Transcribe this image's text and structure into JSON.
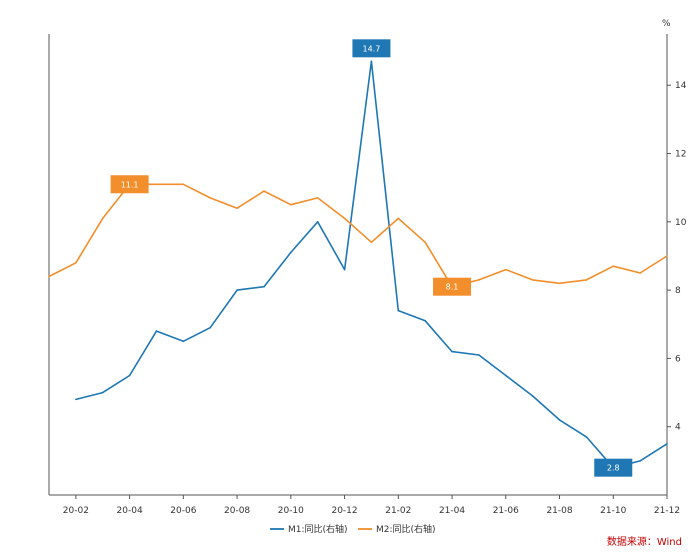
{
  "chart_data": {
    "type": "line",
    "x": [
      "20-01",
      "20-02",
      "20-03",
      "20-04",
      "20-05",
      "20-06",
      "20-07",
      "20-08",
      "20-09",
      "20-10",
      "20-11",
      "20-12",
      "21-01",
      "21-02",
      "21-03",
      "21-04",
      "21-05",
      "21-06",
      "21-07",
      "21-08",
      "21-09",
      "21-10",
      "21-11",
      "21-12"
    ],
    "x_ticks": [
      "20-02",
      "20-04",
      "20-06",
      "20-08",
      "20-10",
      "20-12",
      "21-02",
      "21-04",
      "21-06",
      "21-08",
      "21-10",
      "21-12"
    ],
    "y_unit": "%",
    "ylim": [
      2,
      15.5
    ],
    "y_ticks": [
      4,
      6,
      8,
      10,
      12,
      14
    ],
    "y_axis_side": "right",
    "grid": false,
    "legend_position": "bottom",
    "series": [
      {
        "name": "M1:同比(右轴)",
        "color": "#1f77b4",
        "values": [
          null,
          4.8,
          5.0,
          5.5,
          6.8,
          6.5,
          6.9,
          8.0,
          8.1,
          9.1,
          10.0,
          8.6,
          14.7,
          7.4,
          7.1,
          6.2,
          6.1,
          5.5,
          4.9,
          4.2,
          3.7,
          2.8,
          3.0,
          3.5
        ]
      },
      {
        "name": "M2:同比(右轴)",
        "color": "#f28e2b",
        "values": [
          8.4,
          8.8,
          10.1,
          11.1,
          11.1,
          11.1,
          10.7,
          10.4,
          10.9,
          10.5,
          10.7,
          10.1,
          9.4,
          10.1,
          9.4,
          8.1,
          8.3,
          8.6,
          8.3,
          8.2,
          8.3,
          8.7,
          8.5,
          9.0
        ]
      }
    ],
    "annotations": [
      {
        "series": 0,
        "x": "21-01",
        "text": "14.7"
      },
      {
        "series": 0,
        "x": "21-10",
        "text": "2.8"
      },
      {
        "series": 1,
        "x": "20-04",
        "text": "11.1"
      },
      {
        "series": 1,
        "x": "21-04",
        "text": "8.1"
      }
    ],
    "source": "数据来源：Wind"
  }
}
